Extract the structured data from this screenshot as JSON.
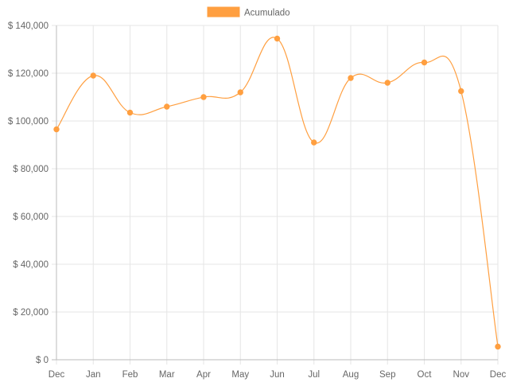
{
  "chart_data": {
    "type": "line",
    "categories": [
      "Dec",
      "Jan",
      "Feb",
      "Mar",
      "Apr",
      "May",
      "Jun",
      "Jul",
      "Aug",
      "Sep",
      "Oct",
      "Nov",
      "Dec"
    ],
    "series": [
      {
        "name": "Acumulado",
        "color": "#ff9f40",
        "values": [
          96500,
          119000,
          103500,
          106000,
          110000,
          112000,
          134500,
          91000,
          118000,
          116000,
          124500,
          112500,
          5500
        ]
      }
    ],
    "ylim": [
      0,
      140000
    ],
    "yticks": [
      0,
      20000,
      40000,
      60000,
      80000,
      100000,
      120000,
      140000
    ],
    "ytick_labels": [
      "$ 0",
      "$ 20,000",
      "$ 40,000",
      "$ 60,000",
      "$ 80,000",
      "$ 100,000",
      "$ 120,000",
      "$ 140,000"
    ],
    "grid": true,
    "legend_position": "top-center",
    "title": "",
    "xlabel": "",
    "ylabel": ""
  }
}
